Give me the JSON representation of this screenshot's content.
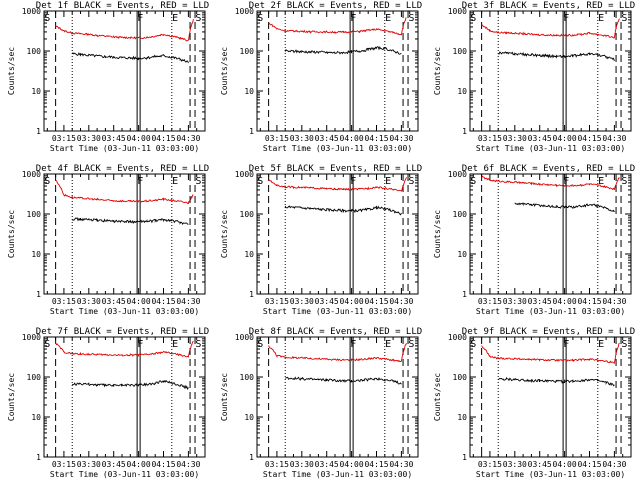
{
  "figure": {
    "x_label": "Start Time (03-Jun-11 03:03:00)",
    "y_label": "Counts/sec",
    "x_ticks": [
      "03:15",
      "03:30",
      "03:45",
      "04:00",
      "04:15",
      "04:30"
    ],
    "y_ticks": [
      "1",
      "10",
      "100",
      "1000"
    ],
    "markers": [
      "S",
      "F",
      "E",
      "S"
    ],
    "colors": {
      "events": "#000000",
      "lld": "#e00000"
    }
  },
  "chart_data": [
    {
      "type": "line",
      "title": "Det 1f BLACK = Events, RED = LLD",
      "xlabel": "Start Time (03-Jun-11 03:03:00)",
      "ylabel": "Counts/sec",
      "x_range": [
        "03:03",
        "04:40"
      ],
      "ylim": [
        1,
        1000
      ],
      "log_y": true,
      "x": [
        "03:10",
        "03:15",
        "03:20",
        "03:25",
        "03:30",
        "03:35",
        "03:40",
        "03:45",
        "03:50",
        "03:55",
        "04:00",
        "04:05",
        "04:10",
        "04:15",
        "04:20",
        "04:25",
        "04:30",
        "04:33"
      ],
      "series": [
        {
          "name": "Events",
          "values": [
            null,
            null,
            85,
            82,
            78,
            75,
            72,
            70,
            68,
            67,
            66,
            68,
            72,
            76,
            70,
            62,
            52,
            null
          ]
        },
        {
          "name": "LLD",
          "values": [
            420,
            320,
            280,
            270,
            260,
            245,
            235,
            225,
            218,
            215,
            212,
            218,
            235,
            260,
            235,
            210,
            180,
            600
          ]
        }
      ]
    },
    {
      "type": "line",
      "title": "Det 2f BLACK = Events, RED = LLD",
      "xlabel": "Start Time (03-Jun-11 03:03:00)",
      "ylabel": "Counts/sec",
      "x_range": [
        "03:03",
        "04:40"
      ],
      "ylim": [
        1,
        1000
      ],
      "log_y": true,
      "x": [
        "03:10",
        "03:15",
        "03:20",
        "03:25",
        "03:30",
        "03:35",
        "03:40",
        "03:45",
        "03:50",
        "03:55",
        "04:00",
        "04:05",
        "04:10",
        "04:15",
        "04:20",
        "04:25",
        "04:30",
        "04:33"
      ],
      "series": [
        {
          "name": "Events",
          "values": [
            null,
            null,
            100,
            98,
            96,
            95,
            94,
            92,
            90,
            92,
            95,
            100,
            108,
            120,
            115,
            100,
            85,
            null
          ]
        },
        {
          "name": "LLD",
          "values": [
            500,
            360,
            320,
            315,
            310,
            305,
            300,
            298,
            295,
            298,
            300,
            310,
            330,
            350,
            320,
            290,
            260,
            700
          ]
        }
      ]
    },
    {
      "type": "line",
      "title": "Det 3f BLACK = Events, RED = LLD",
      "xlabel": "Start Time (03-Jun-11 03:03:00)",
      "ylabel": "Counts/sec",
      "x_range": [
        "03:03",
        "04:40"
      ],
      "ylim": [
        1,
        1000
      ],
      "log_y": true,
      "x": [
        "03:10",
        "03:15",
        "03:20",
        "03:25",
        "03:30",
        "03:35",
        "03:40",
        "03:45",
        "03:50",
        "03:55",
        "04:00",
        "04:05",
        "04:10",
        "04:15",
        "04:20",
        "04:25",
        "04:30",
        "04:33"
      ],
      "series": [
        {
          "name": "Events",
          "values": [
            null,
            null,
            90,
            88,
            85,
            82,
            80,
            78,
            75,
            74,
            73,
            75,
            80,
            85,
            80,
            72,
            60,
            null
          ]
        },
        {
          "name": "LLD",
          "values": [
            450,
            320,
            290,
            285,
            278,
            270,
            262,
            255,
            250,
            248,
            245,
            250,
            262,
            280,
            260,
            240,
            215,
            650
          ]
        }
      ]
    },
    {
      "type": "line",
      "title": "Det 4f BLACK = Events, RED = LLD",
      "xlabel": "Start Time (03-Jun-11 03:03:00)",
      "ylabel": "Counts/sec",
      "x_range": [
        "03:03",
        "04:40"
      ],
      "ylim": [
        1,
        1000
      ],
      "log_y": true,
      "x": [
        "03:10",
        "03:15",
        "03:20",
        "03:25",
        "03:30",
        "03:35",
        "03:40",
        "03:45",
        "03:50",
        "03:55",
        "04:00",
        "04:05",
        "04:10",
        "04:15",
        "04:20",
        "04:25",
        "04:30",
        "04:33"
      ],
      "series": [
        {
          "name": "Events",
          "values": [
            null,
            null,
            75,
            74,
            72,
            70,
            68,
            66,
            65,
            64,
            64,
            65,
            68,
            72,
            68,
            62,
            55,
            null
          ]
        },
        {
          "name": "LLD",
          "values": [
            700,
            300,
            260,
            250,
            240,
            230,
            222,
            215,
            210,
            208,
            207,
            210,
            220,
            235,
            220,
            205,
            190,
            300
          ]
        }
      ]
    },
    {
      "type": "line",
      "title": "Det 5f BLACK = Events, RED = LLD",
      "xlabel": "Start Time (03-Jun-11 03:03:00)",
      "ylabel": "Counts/sec",
      "x_range": [
        "03:03",
        "04:40"
      ],
      "ylim": [
        1,
        1000
      ],
      "log_y": true,
      "x": [
        "03:10",
        "03:15",
        "03:20",
        "03:25",
        "03:30",
        "03:35",
        "03:40",
        "03:45",
        "03:50",
        "03:55",
        "04:00",
        "04:05",
        "04:10",
        "04:15",
        "04:20",
        "04:25",
        "04:30",
        "04:33"
      ],
      "series": [
        {
          "name": "Events",
          "values": [
            null,
            null,
            150,
            148,
            142,
            138,
            132,
            128,
            125,
            122,
            120,
            122,
            130,
            145,
            135,
            120,
            100,
            null
          ]
        },
        {
          "name": "LLD",
          "values": [
            700,
            520,
            480,
            470,
            460,
            450,
            440,
            430,
            420,
            415,
            410,
            420,
            440,
            470,
            440,
            410,
            370,
            800
          ]
        }
      ]
    },
    {
      "type": "line",
      "title": "Det 6f BLACK = Events, RED = LLD",
      "xlabel": "Start Time (03-Jun-11 03:03:00)",
      "ylabel": "Counts/sec",
      "x_range": [
        "03:03",
        "04:40"
      ],
      "ylim": [
        1,
        1000
      ],
      "log_y": true,
      "x": [
        "03:10",
        "03:15",
        "03:20",
        "03:25",
        "03:30",
        "03:35",
        "03:40",
        "03:45",
        "03:50",
        "03:55",
        "04:00",
        "04:05",
        "04:10",
        "04:15",
        "04:20",
        "04:25",
        "04:30",
        "04:33"
      ],
      "series": [
        {
          "name": "Events",
          "values": [
            null,
            null,
            null,
            null,
            185,
            180,
            172,
            165,
            158,
            152,
            148,
            150,
            158,
            170,
            160,
            140,
            115,
            null
          ]
        },
        {
          "name": "LLD",
          "values": [
            850,
            700,
            660,
            640,
            620,
            600,
            580,
            560,
            540,
            525,
            510,
            515,
            530,
            560,
            520,
            470,
            420,
            850
          ]
        }
      ]
    },
    {
      "type": "line",
      "title": "Det 7f BLACK = Events, RED = LLD",
      "xlabel": "Start Time (03-Jun-11 03:03:00)",
      "ylabel": "Counts/sec",
      "x_range": [
        "03:03",
        "04:40"
      ],
      "ylim": [
        1,
        1000
      ],
      "log_y": true,
      "x": [
        "03:10",
        "03:15",
        "03:20",
        "03:25",
        "03:30",
        "03:35",
        "03:40",
        "03:45",
        "03:50",
        "03:55",
        "04:00",
        "04:05",
        "04:10",
        "04:15",
        "04:20",
        "04:25",
        "04:30",
        "04:33"
      ],
      "series": [
        {
          "name": "Events",
          "values": [
            null,
            null,
            65,
            66,
            65,
            64,
            63,
            62,
            62,
            63,
            64,
            66,
            70,
            78,
            72,
            62,
            52,
            null
          ]
        },
        {
          "name": "LLD",
          "values": [
            700,
            420,
            380,
            375,
            370,
            365,
            360,
            355,
            350,
            352,
            355,
            365,
            385,
            420,
            390,
            355,
            320,
            800
          ]
        }
      ]
    },
    {
      "type": "line",
      "title": "Det 8f BLACK = Events, RED = LLD",
      "xlabel": "Start Time (03-Jun-11 03:03:00)",
      "ylabel": "Counts/sec",
      "x_range": [
        "03:03",
        "04:40"
      ],
      "ylim": [
        1,
        1000
      ],
      "log_y": true,
      "x": [
        "03:10",
        "03:15",
        "03:20",
        "03:25",
        "03:30",
        "03:35",
        "03:40",
        "03:45",
        "03:50",
        "03:55",
        "04:00",
        "04:05",
        "04:10",
        "04:15",
        "04:20",
        "04:25",
        "04:30",
        "04:33"
      ],
      "series": [
        {
          "name": "Events",
          "values": [
            null,
            null,
            95,
            92,
            90,
            88,
            86,
            84,
            82,
            80,
            80,
            82,
            86,
            92,
            86,
            78,
            68,
            null
          ]
        },
        {
          "name": "LLD",
          "values": [
            600,
            340,
            310,
            305,
            300,
            292,
            285,
            278,
            272,
            270,
            268,
            272,
            285,
            300,
            282,
            262,
            240,
            700
          ]
        }
      ]
    },
    {
      "type": "line",
      "title": "Det 9f BLACK = Events, RED = LLD",
      "xlabel": "Start Time (03-Jun-11 03:03:00)",
      "ylabel": "Counts/sec",
      "x_range": [
        "03:03",
        "04:40"
      ],
      "ylim": [
        1,
        1000
      ],
      "log_y": true,
      "x": [
        "03:10",
        "03:15",
        "03:20",
        "03:25",
        "03:30",
        "03:35",
        "03:40",
        "03:45",
        "03:50",
        "03:55",
        "04:00",
        "04:05",
        "04:10",
        "04:15",
        "04:20",
        "04:25",
        "04:30",
        "04:33"
      ],
      "series": [
        {
          "name": "Events",
          "values": [
            null,
            null,
            88,
            87,
            86,
            84,
            82,
            80,
            79,
            78,
            77,
            79,
            82,
            86,
            80,
            72,
            62,
            null
          ]
        },
        {
          "name": "LLD",
          "values": [
            600,
            320,
            295,
            290,
            285,
            280,
            275,
            270,
            265,
            262,
            260,
            262,
            270,
            280,
            265,
            248,
            225,
            700
          ]
        }
      ]
    }
  ]
}
